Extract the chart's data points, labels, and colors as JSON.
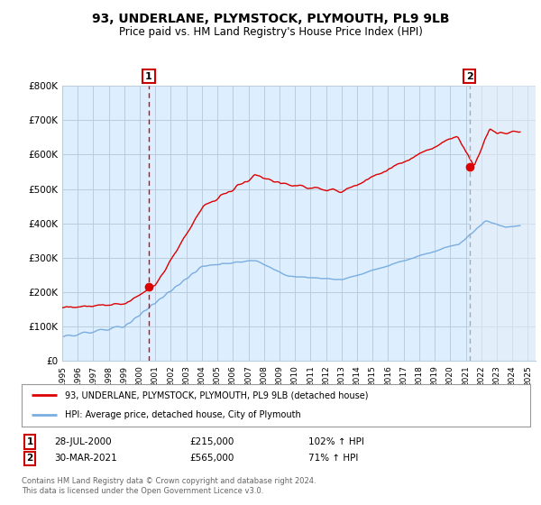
{
  "title": "93, UNDERLANE, PLYMSTOCK, PLYMOUTH, PL9 9LB",
  "subtitle": "Price paid vs. HM Land Registry's House Price Index (HPI)",
  "title_fontsize": 10,
  "subtitle_fontsize": 8.5,
  "xlim": [
    1995.0,
    2025.5
  ],
  "ylim": [
    0,
    800000
  ],
  "yticks": [
    0,
    100000,
    200000,
    300000,
    400000,
    500000,
    600000,
    700000,
    800000
  ],
  "ytick_labels": [
    "£0",
    "£100K",
    "£200K",
    "£300K",
    "£400K",
    "£500K",
    "£600K",
    "£700K",
    "£800K"
  ],
  "xtick_years": [
    1995,
    1996,
    1997,
    1998,
    1999,
    2000,
    2001,
    2002,
    2003,
    2004,
    2005,
    2006,
    2007,
    2008,
    2009,
    2010,
    2011,
    2012,
    2013,
    2014,
    2015,
    2016,
    2017,
    2018,
    2019,
    2020,
    2021,
    2022,
    2023,
    2024,
    2025
  ],
  "red_line_color": "#dd0000",
  "blue_line_color": "#7aade0",
  "vline_color": "#dd0000",
  "plot_bg_color": "#ddeeff",
  "fig_bg_color": "#ffffff",
  "grid_color": "#bbccdd",
  "sale1_x": 2000.57,
  "sale1_y": 215000,
  "sale1_label": "1",
  "sale1_date": "28-JUL-2000",
  "sale1_price": "£215,000",
  "sale1_hpi": "102% ↑ HPI",
  "sale2_x": 2021.24,
  "sale2_y": 565000,
  "sale2_label": "2",
  "sale2_date": "30-MAR-2021",
  "sale2_price": "£565,000",
  "sale2_hpi": "71% ↑ HPI",
  "legend_line1": "93, UNDERLANE, PLYMSTOCK, PLYMOUTH, PL9 9LB (detached house)",
  "legend_line2": "HPI: Average price, detached house, City of Plymouth",
  "footer1": "Contains HM Land Registry data © Crown copyright and database right 2024.",
  "footer2": "This data is licensed under the Open Government Licence v3.0."
}
